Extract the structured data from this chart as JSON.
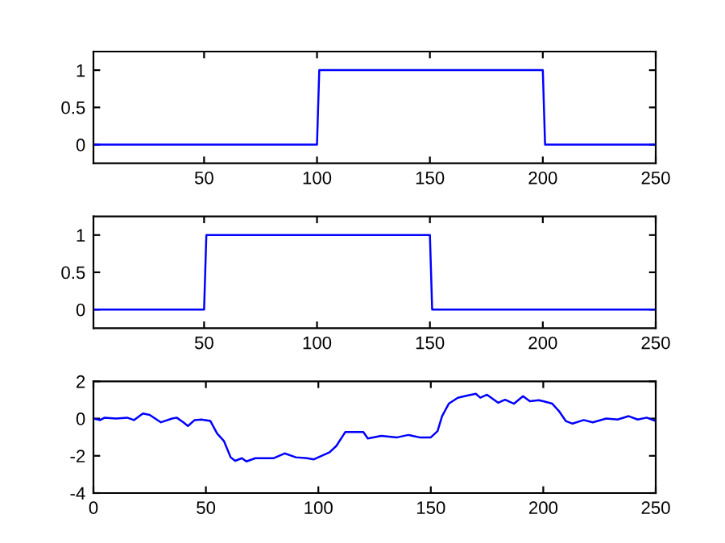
{
  "chart_data": [
    {
      "type": "line",
      "x": [
        1,
        100,
        101,
        200,
        201,
        250
      ],
      "series": [
        {
          "color": "#0000ff",
          "values": [
            0,
            0,
            1,
            1,
            0,
            0
          ]
        }
      ],
      "xlim": [
        1,
        250
      ],
      "ylim": [
        -0.25,
        1.25
      ],
      "xticks": [
        50,
        100,
        150,
        200,
        250
      ],
      "yticks": [
        0,
        0.5,
        1
      ],
      "grid": false
    },
    {
      "type": "line",
      "x": [
        1,
        50,
        51,
        150,
        151,
        250
      ],
      "series": [
        {
          "color": "#0000ff",
          "values": [
            0,
            0,
            1,
            1,
            0,
            0
          ]
        }
      ],
      "xlim": [
        1,
        250
      ],
      "ylim": [
        -0.25,
        1.25
      ],
      "xticks": [
        50,
        100,
        150,
        200,
        250
      ],
      "yticks": [
        0,
        0.5,
        1
      ],
      "grid": false
    },
    {
      "type": "line",
      "x": [
        0,
        3,
        5,
        10,
        15,
        18,
        22,
        25,
        30,
        35,
        37,
        40,
        42,
        45,
        48,
        52,
        55,
        58,
        61,
        63,
        66,
        68,
        72,
        76,
        80,
        85,
        90,
        95,
        98,
        100,
        105,
        108,
        112,
        115,
        120,
        122,
        128,
        135,
        140,
        145,
        150,
        153,
        155,
        158,
        162,
        165,
        170,
        172,
        175,
        180,
        183,
        187,
        191,
        194,
        198,
        200,
        204,
        207,
        210,
        213,
        218,
        222,
        228,
        233,
        238,
        242,
        246,
        250
      ],
      "series": [
        {
          "color": "#0000ff",
          "values": [
            0.0,
            -0.08,
            0.05,
            0.0,
            0.05,
            -0.08,
            0.27,
            0.2,
            -0.2,
            0.0,
            0.05,
            -0.2,
            -0.4,
            -0.08,
            -0.05,
            -0.13,
            -0.8,
            -1.2,
            -2.08,
            -2.27,
            -2.13,
            -2.3,
            -2.13,
            -2.13,
            -2.13,
            -1.87,
            -2.08,
            -2.13,
            -2.19,
            -2.08,
            -1.81,
            -1.47,
            -0.72,
            -0.72,
            -0.72,
            -1.07,
            -0.93,
            -1.01,
            -0.88,
            -1.01,
            -1.01,
            -0.67,
            0.13,
            0.8,
            1.12,
            1.2,
            1.33,
            1.12,
            1.28,
            0.85,
            1.01,
            0.8,
            1.2,
            0.93,
            0.99,
            0.93,
            0.8,
            0.4,
            -0.13,
            -0.27,
            -0.08,
            -0.2,
            0.0,
            -0.05,
            0.13,
            -0.05,
            0.05,
            -0.13
          ]
        }
      ],
      "xlim": [
        0,
        250
      ],
      "ylim": [
        -4,
        2
      ],
      "xticks": [
        0,
        50,
        100,
        150,
        200,
        250
      ],
      "yticks": [
        -4,
        -2,
        0,
        2
      ],
      "grid": false
    }
  ]
}
